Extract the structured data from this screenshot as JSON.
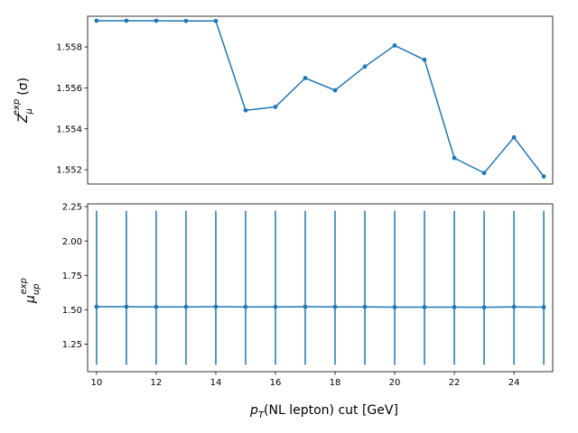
{
  "chart_data": [
    {
      "type": "line",
      "ylabel": {
        "base": "Z",
        "sub": "μ",
        "sup": "exp",
        "suffix": "(σ)"
      },
      "xlim": [
        9.7,
        25.3
      ],
      "ylim": [
        1.5513,
        1.5595
      ],
      "yticks": [
        1.552,
        1.554,
        1.556,
        1.558
      ],
      "ytick_labels": [
        "1.552",
        "1.554",
        "1.556",
        "1.558"
      ],
      "x": [
        10,
        11,
        12,
        13,
        14,
        15,
        16,
        17,
        18,
        19,
        20,
        21,
        22,
        23,
        24,
        25
      ],
      "y": [
        1.55928,
        1.55928,
        1.55928,
        1.55927,
        1.55927,
        1.5549,
        1.55507,
        1.55648,
        1.55588,
        1.55704,
        1.55807,
        1.55737,
        1.55257,
        1.55184,
        1.55358,
        1.55167
      ],
      "color": "#1f77b4"
    },
    {
      "type": "line",
      "errorbars": true,
      "ylabel": {
        "base": "μ",
        "sub": "up",
        "sup": "exp"
      },
      "xlabel": {
        "base": "p",
        "sub": "T",
        "suffix": "(NL lepton) cut [GeV]"
      },
      "xlim": [
        9.7,
        25.3
      ],
      "ylim": [
        1.05,
        2.27
      ],
      "yticks": [
        1.25,
        1.5,
        1.75,
        2.0,
        2.25
      ],
      "ytick_labels": [
        "1.25",
        "1.50",
        "1.75",
        "2.00",
        "2.25"
      ],
      "xticks": [
        10,
        12,
        14,
        16,
        18,
        20,
        22,
        24
      ],
      "xtick_labels": [
        "10",
        "12",
        "14",
        "16",
        "18",
        "20",
        "22",
        "24"
      ],
      "x": [
        10,
        11,
        12,
        13,
        14,
        15,
        16,
        17,
        18,
        19,
        20,
        21,
        22,
        23,
        24,
        25
      ],
      "y": [
        1.522,
        1.522,
        1.521,
        1.521,
        1.522,
        1.521,
        1.521,
        1.522,
        1.521,
        1.521,
        1.519,
        1.519,
        1.519,
        1.518,
        1.521,
        1.519
      ],
      "err_low": [
        1.1,
        1.1,
        1.1,
        1.1,
        1.1,
        1.1,
        1.1,
        1.1,
        1.1,
        1.1,
        1.1,
        1.1,
        1.1,
        1.1,
        1.1,
        1.1
      ],
      "err_high": [
        2.22,
        2.22,
        2.22,
        2.22,
        2.22,
        2.22,
        2.22,
        2.22,
        2.22,
        2.22,
        2.22,
        2.22,
        2.22,
        2.22,
        2.22,
        2.22
      ],
      "color": "#1f77b4"
    }
  ]
}
